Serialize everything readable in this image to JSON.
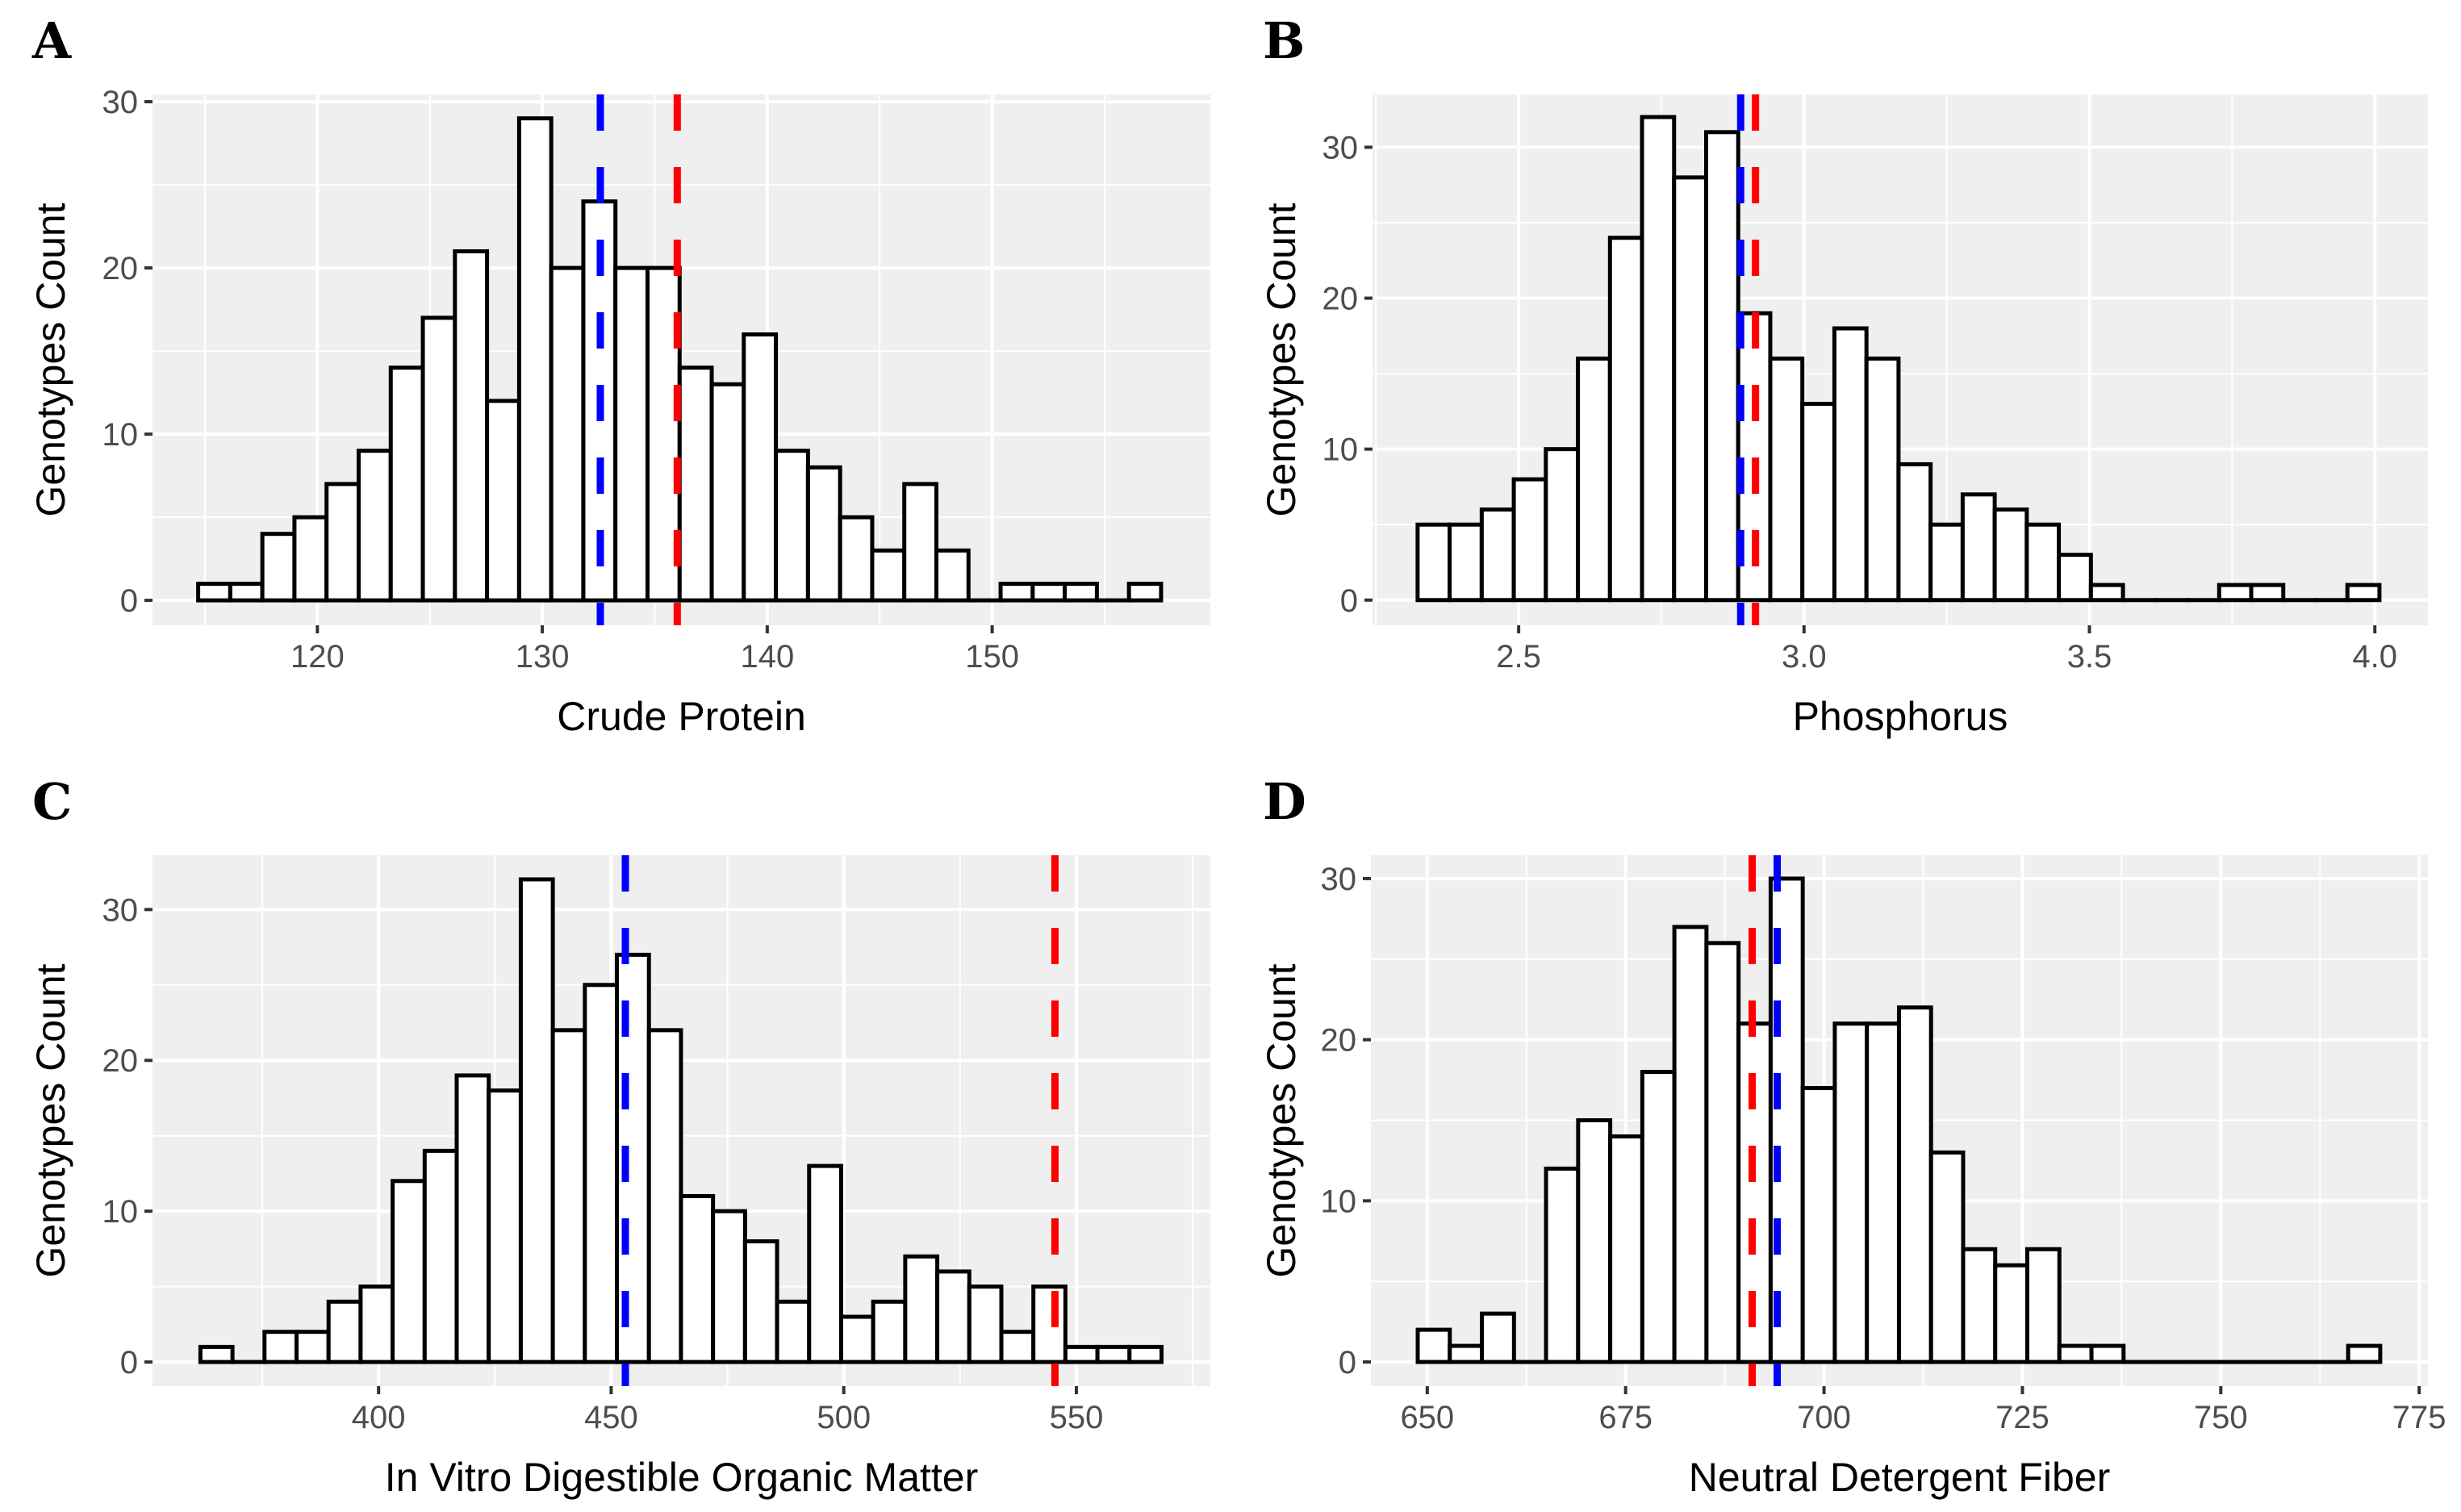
{
  "chart_data": [
    {
      "type": "bar",
      "panel_label": "A",
      "title": "",
      "xlabel": "Crude Protein",
      "ylabel": "Genotypes Count",
      "xlim": [
        112.67,
        159.7
      ],
      "ylim": [
        -1.5,
        30.44
      ],
      "xticks": [
        120,
        130,
        140,
        150
      ],
      "yticks": [
        0,
        10,
        20,
        30
      ],
      "bin_start": 114.7,
      "bin_width": 1.427,
      "values": [
        1,
        1,
        4,
        5,
        7,
        9,
        14,
        17,
        21,
        12,
        29,
        20,
        24,
        20,
        20,
        14,
        13,
        16,
        9,
        8,
        5,
        3,
        7,
        3,
        0,
        1,
        1,
        1,
        0,
        1
      ],
      "vlines": [
        {
          "value": 132.58,
          "color": "#0000ff"
        },
        {
          "value": 136.0,
          "color": "#ff0000"
        }
      ],
      "grid": true
    },
    {
      "type": "bar",
      "panel_label": "B",
      "title": "",
      "xlabel": "Phosphorus",
      "ylabel": "Genotypes Count",
      "xlim": [
        2.244,
        4.093
      ],
      "ylim": [
        -1.67,
        33.5
      ],
      "xticks": [
        "2.5",
        "3.0",
        "3.5",
        "4.0"
      ],
      "yticks": [
        0,
        10,
        20,
        30
      ],
      "bin_start": 2.323,
      "bin_width": 0.05617,
      "values": [
        5,
        5,
        6,
        8,
        10,
        16,
        24,
        32,
        28,
        31,
        19,
        16,
        13,
        18,
        16,
        9,
        5,
        7,
        6,
        5,
        3,
        1,
        0,
        0,
        0,
        1,
        1,
        0,
        0,
        1
      ],
      "vlines": [
        {
          "value": 2.889,
          "color": "#0000ff"
        },
        {
          "value": 2.915,
          "color": "#ff0000"
        }
      ],
      "grid": true
    },
    {
      "type": "bar",
      "panel_label": "C",
      "title": "",
      "xlabel": "In Vitro Digestible Organic Matter",
      "ylabel": "Genotypes Count",
      "xlim": [
        351.4,
        578.8
      ],
      "ylim": [
        -1.6,
        33.6
      ],
      "xticks": [
        400,
        450,
        500,
        550
      ],
      "yticks": [
        0,
        10,
        20,
        30
      ],
      "bin_start": 361.7,
      "bin_width": 6.887,
      "values": [
        1,
        0,
        2,
        2,
        4,
        5,
        12,
        14,
        19,
        18,
        32,
        22,
        25,
        27,
        22,
        11,
        10,
        8,
        4,
        13,
        3,
        4,
        7,
        6,
        5,
        2,
        5,
        1,
        1,
        1
      ],
      "vlines": [
        {
          "value": 453.05,
          "color": "#0000ff"
        },
        {
          "value": 545.4,
          "color": "#ff0000"
        }
      ],
      "grid": true
    },
    {
      "type": "bar",
      "panel_label": "D",
      "title": "",
      "xlabel": "Neutral Detergent Fiber",
      "ylabel": "Genotypes Count",
      "xlim": [
        642.9,
        776.1
      ],
      "ylim": [
        -1.5,
        31.45
      ],
      "xticks": [
        650,
        675,
        700,
        725,
        750,
        775
      ],
      "yticks": [
        0,
        10,
        20,
        30
      ],
      "bin_start": 648.8,
      "bin_width": 4.043,
      "values": [
        2,
        1,
        3,
        0,
        12,
        15,
        14,
        18,
        27,
        26,
        21,
        30,
        17,
        21,
        21,
        22,
        13,
        7,
        6,
        7,
        1,
        1,
        0,
        0,
        0,
        0,
        0,
        0,
        0,
        1
      ],
      "vlines": [
        {
          "value": 690.95,
          "color": "#ff0000"
        },
        {
          "value": 694.1,
          "color": "#0000ff"
        }
      ],
      "grid": true
    }
  ]
}
